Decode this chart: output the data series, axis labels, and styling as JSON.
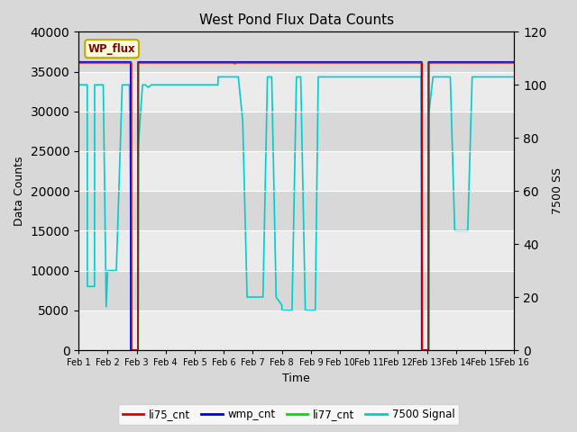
{
  "title": "West Pond Flux Data Counts",
  "xlabel": "Time",
  "ylabel_left": "Data Counts",
  "ylabel_right": "7500 SS",
  "ylim_left": [
    0,
    40000
  ],
  "ylim_right": [
    0,
    120
  ],
  "background_color": "#e8e8e8",
  "legend_label": "WP_flux",
  "series": {
    "li77_cnt": {
      "color": "#00dd00",
      "lw": 1.5
    },
    "li75_cnt": {
      "color": "#dd0000",
      "lw": 1.2
    },
    "wmp_cnt": {
      "color": "#0000dd",
      "lw": 1.2
    },
    "signal7500": {
      "color": "#00cccc",
      "lw": 1.2
    }
  },
  "xtick_labels": [
    "Feb 1",
    "Feb 2",
    "Feb 3",
    "Feb 4",
    "Feb 5",
    "Feb 6",
    "Feb 7",
    "Feb 8",
    "Feb 9",
    "Feb 10",
    "Feb 11",
    "Feb 12",
    "Feb 13",
    "Feb 14",
    "Feb 15",
    "Feb 16"
  ],
  "yticks_left": [
    0,
    5000,
    10000,
    15000,
    20000,
    25000,
    30000,
    35000,
    40000
  ],
  "yticks_right": [
    0,
    20,
    40,
    60,
    80,
    100,
    120
  ],
  "scale": 333.33
}
